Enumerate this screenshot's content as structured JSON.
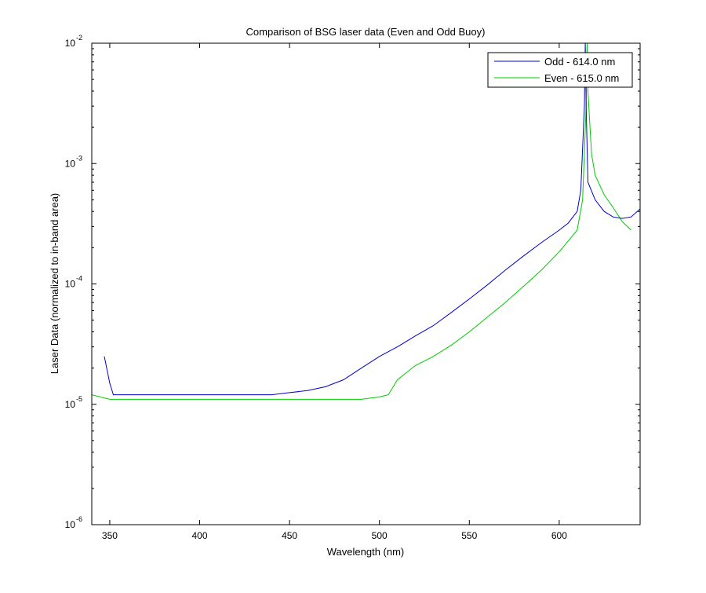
{
  "chart_data": {
    "type": "line",
    "title": "Comparison of BSG laser data (Even and Odd Buoy)",
    "xlabel": "Wavelength (nm)",
    "ylabel": "Laser Data (normalized to in-band area)",
    "xlim": [
      340,
      645
    ],
    "ylim": [
      1e-06,
      0.01
    ],
    "y_scale": "log",
    "x_ticks": [
      350,
      400,
      450,
      500,
      550,
      600
    ],
    "y_ticks": [
      {
        "value": 1e-06,
        "base": "10",
        "exp": "-6"
      },
      {
        "value": 1e-05,
        "base": "10",
        "exp": "-5"
      },
      {
        "value": 0.0001,
        "base": "10",
        "exp": "-4"
      },
      {
        "value": 0.001,
        "base": "10",
        "exp": "-3"
      },
      {
        "value": 0.01,
        "base": "10",
        "exp": "-2"
      }
    ],
    "legend_position": "top-right",
    "series": [
      {
        "name": "Odd - 614.0 nm",
        "color": "#0000cc",
        "x": [
          347,
          350,
          352,
          360,
          370,
          380,
          390,
          400,
          410,
          420,
          430,
          440,
          450,
          460,
          470,
          480,
          490,
          500,
          510,
          520,
          530,
          540,
          550,
          560,
          570,
          580,
          590,
          600,
          605,
          610,
          612,
          614,
          614.5,
          615,
          616,
          620,
          625,
          630,
          635,
          640,
          645
        ],
        "y": [
          2.5e-05,
          1.5e-05,
          1.2e-05,
          1.2e-05,
          1.2e-05,
          1.2e-05,
          1.2e-05,
          1.2e-05,
          1.2e-05,
          1.2e-05,
          1.2e-05,
          1.2e-05,
          1.25e-05,
          1.3e-05,
          1.4e-05,
          1.6e-05,
          2e-05,
          2.5e-05,
          3e-05,
          3.7e-05,
          4.5e-05,
          5.8e-05,
          7.5e-05,
          9.8e-05,
          0.00013,
          0.00017,
          0.00022,
          0.00028,
          0.00032,
          0.0004,
          0.0006,
          0.003,
          0.01,
          0.003,
          0.0007,
          0.0005,
          0.0004,
          0.00036,
          0.00035,
          0.00036,
          0.00042
        ]
      },
      {
        "name": "Even - 615.0 nm",
        "color": "#00cc00",
        "x": [
          340,
          350,
          360,
          370,
          380,
          390,
          400,
          410,
          420,
          430,
          440,
          450,
          460,
          470,
          480,
          490,
          500,
          505,
          510,
          520,
          530,
          540,
          550,
          560,
          570,
          580,
          590,
          600,
          610,
          613,
          615,
          615.5,
          616,
          618,
          620,
          625,
          630,
          635,
          640
        ],
        "y": [
          1.2e-05,
          1.1e-05,
          1.1e-05,
          1.1e-05,
          1.1e-05,
          1.1e-05,
          1.1e-05,
          1.1e-05,
          1.1e-05,
          1.1e-05,
          1.1e-05,
          1.1e-05,
          1.1e-05,
          1.1e-05,
          1.1e-05,
          1.1e-05,
          1.15e-05,
          1.2e-05,
          1.6e-05,
          2.1e-05,
          2.5e-05,
          3.1e-05,
          4e-05,
          5.3e-05,
          7e-05,
          9.5e-05,
          0.00013,
          0.000185,
          0.00028,
          0.0005,
          0.003,
          0.01,
          0.004,
          0.0012,
          0.0008,
          0.00055,
          0.00043,
          0.00033,
          0.00028
        ]
      }
    ]
  }
}
